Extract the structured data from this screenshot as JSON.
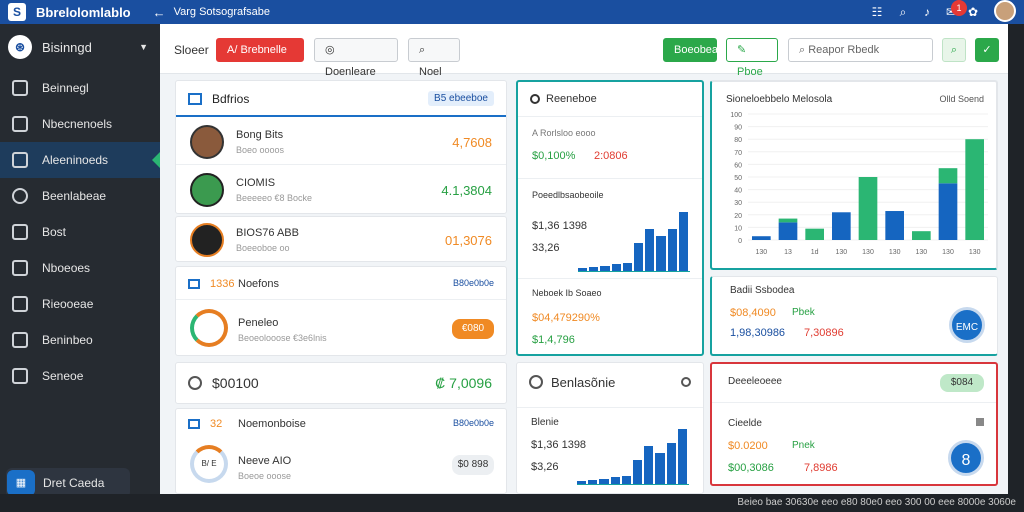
{
  "topbar": {
    "logo": "S",
    "title": "Bbrelolomlablo",
    "back_icon": "←",
    "subtitle": "Varg Sotsografsabe",
    "notif_count": "1"
  },
  "sidebar": {
    "brand": "Bisinngd",
    "items": [
      {
        "label": "Beinnegl"
      },
      {
        "label": "Nbecnenoels"
      },
      {
        "label": "Aleeninoeds"
      },
      {
        "label": "Beenlabeae"
      },
      {
        "label": "Bost"
      },
      {
        "label": "Nboeoes"
      },
      {
        "label": "Rieooeae"
      },
      {
        "label": "Beninbeo"
      },
      {
        "label": "Seneoe"
      }
    ],
    "bottom_label": "Dret Caeda"
  },
  "toolbar": {
    "label": "Sloeer",
    "btn_primary": "A/ Brebnelle",
    "btn_select": "Doenleare",
    "btn_search": "Noel",
    "btn_green": "Boeobea",
    "btn_outline": "Pboe",
    "search_placeholder": "Reapor Rbedk"
  },
  "list_card": {
    "title": "Bdfrios",
    "badge": "B5 ebeeboe",
    "rows": [
      {
        "name": "Bong Bits",
        "sub": "Boeo oooos",
        "value": "4,7608"
      },
      {
        "name": "CIOMIS",
        "sub": "Beeeeeo €8 Bocke",
        "value": "4.1,3804"
      },
      {
        "name": "BIOS76 ABB",
        "sub": "Boeeoboe oo",
        "value": "01,3076"
      }
    ]
  },
  "tasks_card": {
    "left": "1336",
    "title": "Noefons",
    "badge": "B80e0b0e",
    "name": "Peneleo",
    "sub": "Beoeolooose €3e6lnis",
    "pill": "€080"
  },
  "total_card": {
    "title": "$00100",
    "value": "₡ 7,0096"
  },
  "members_card": {
    "count": "32",
    "title": "Noemonboise",
    "badge": "B80e0b0e",
    "name": "Neeve AIO",
    "sub": "Boeoe ooose",
    "chip": "$0 898",
    "ring_label": "B/ E"
  },
  "revenue_card": {
    "title": "Reeneboe",
    "sub": "A Rorlsloo eooo",
    "v1": "$0,100%",
    "v2": "2:0806",
    "sec2": "Poeedlbsaobeoile",
    "v3": "$1,36 1398",
    "v4": "33,26",
    "sec3": "Neboek Ib Soaeo",
    "v5": "$04,479290%",
    "v6": "$1,4,796",
    "bars": [
      4,
      6,
      7,
      10,
      12,
      40,
      60,
      50,
      60,
      85
    ]
  },
  "bigchart_card": {
    "title": "Sioneloebbelo Melosola",
    "link": "Olld Soend",
    "y_ticks": [
      "0",
      "10",
      "20",
      "30",
      "40",
      "50",
      "60",
      "70",
      "80",
      "90",
      "100"
    ],
    "x_labels": [
      "130",
      "13",
      "1d",
      "130",
      "130",
      "130",
      "130",
      "130",
      "130"
    ],
    "chart_data": {
      "type": "bar",
      "categories": [
        "130",
        "13",
        "1d",
        "130",
        "130",
        "130",
        "130",
        "130",
        "130"
      ],
      "series": [
        {
          "values": [
            3,
            14,
            0,
            22,
            0,
            23,
            0,
            45,
            0
          ],
          "color": "#1565c0"
        },
        {
          "values": [
            0,
            3,
            9,
            0,
            50,
            0,
            7,
            12,
            80
          ],
          "color": "#2bb673"
        }
      ]
    }
  },
  "stats_card": {
    "title": "Badii Ssbodea",
    "v1": "$08,4090",
    "v1b": "Pbek",
    "v2": "1,98,30986",
    "v3": "7,30896",
    "badge": "EMC"
  },
  "report_card": {
    "title": "Benlasõnie",
    "sub": "Blenie",
    "v1": "$1,36 1398",
    "v2": "$3,26",
    "bars": [
      4,
      6,
      8,
      10,
      12,
      35,
      55,
      45,
      60,
      80
    ]
  },
  "alert_card": {
    "title": "Deeeleoeee",
    "pill": "$084",
    "sub": "Cieelde",
    "v1": "$0.0200",
    "v1b": "Pnek",
    "v2": "$00,3086",
    "v3": "7,8986",
    "badge": "8"
  },
  "footer": {
    "text": "Beieo bae 30630e eeo e80 80e0 eeo 300 00 eee 8000e 3060e"
  }
}
